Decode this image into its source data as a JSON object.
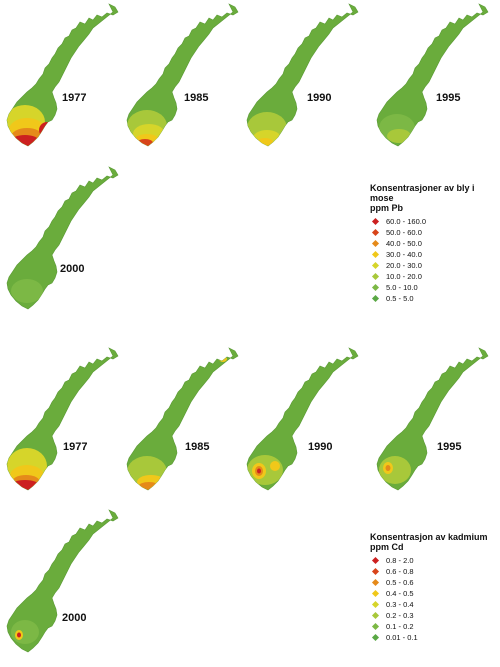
{
  "lead_section": {
    "legend": {
      "title_line1": "Konsentrasjoner av bly i mose",
      "title_line2": "ppm Pb",
      "items": [
        {
          "label": "60.0 - 160.0",
          "color": "#cc2020"
        },
        {
          "label": "50.0 - 60.0",
          "color": "#d8441a"
        },
        {
          "label": "40.0 - 50.0",
          "color": "#e58a1a"
        },
        {
          "label": "30.0 - 40.0",
          "color": "#f0c81a"
        },
        {
          "label": "20.0 - 30.0",
          "color": "#d6d52a"
        },
        {
          "label": "10.0 - 20.0",
          "color": "#a8c83a"
        },
        {
          "label": "5.0 - 10.0",
          "color": "#7cb845"
        },
        {
          "label": "0.5 - 5.0",
          "color": "#5aa845"
        }
      ]
    },
    "maps": [
      {
        "year": "1977",
        "hotspot": "lead-south-heavy"
      },
      {
        "year": "1985",
        "hotspot": "lead-south-medium"
      },
      {
        "year": "1990",
        "hotspot": "lead-south-light"
      },
      {
        "year": "1995",
        "hotspot": "lead-south-faint"
      },
      {
        "year": "2000",
        "hotspot": "none"
      }
    ]
  },
  "cadmium_section": {
    "legend": {
      "title_line1": "Konsentrasjon av kadmium",
      "title_line2": "ppm Cd",
      "items": [
        {
          "label": "0.8 - 2.0",
          "color": "#cc2020"
        },
        {
          "label": "0.6 - 0.8",
          "color": "#d8441a"
        },
        {
          "label": "0.5 - 0.6",
          "color": "#e58a1a"
        },
        {
          "label": "0.4 - 0.5",
          "color": "#f0c81a"
        },
        {
          "label": "0.3 - 0.4",
          "color": "#d6d52a"
        },
        {
          "label": "0.2 - 0.3",
          "color": "#a8c83a"
        },
        {
          "label": "0.1 - 0.2",
          "color": "#7cb845"
        },
        {
          "label": "0.01 - 0.1",
          "color": "#5aa845"
        }
      ]
    },
    "maps": [
      {
        "year": "1977",
        "hotspot": "cadmium-south-heavy"
      },
      {
        "year": "1985",
        "hotspot": "cadmium-south-and-north"
      },
      {
        "year": "1990",
        "hotspot": "cadmium-west-spot"
      },
      {
        "year": "1995",
        "hotspot": "cadmium-west-spot-small"
      },
      {
        "year": "2000",
        "hotspot": "cadmium-west-spot-tiny"
      }
    ]
  },
  "colors": {
    "base_land": "#6aac3c",
    "coast": "#5a9a35"
  }
}
